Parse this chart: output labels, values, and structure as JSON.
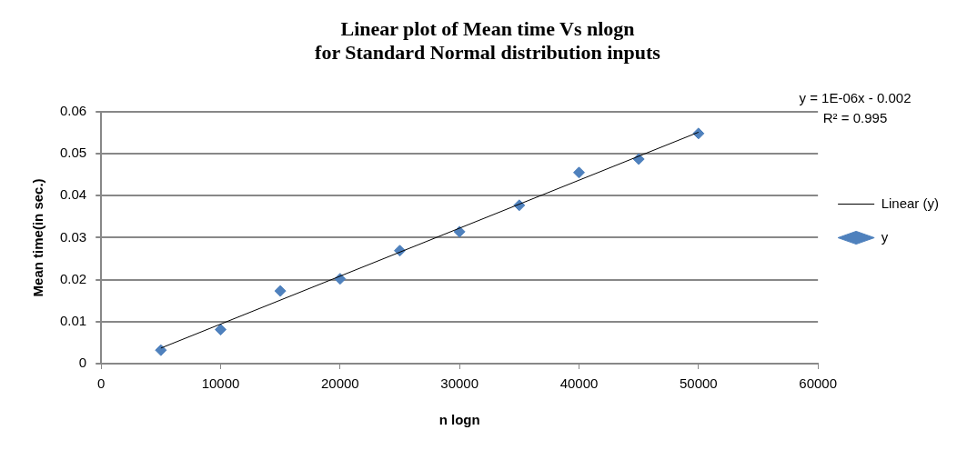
{
  "chart_data": {
    "type": "scatter",
    "title": "Linear plot of Mean time Vs nlogn\nfor Standard Normal distribution inputs",
    "xlabel": "n logn",
    "ylabel": "Mean time(in sec.)",
    "x": [
      5000,
      10000,
      15000,
      20000,
      25000,
      30000,
      35000,
      40000,
      45000,
      50000
    ],
    "series": [
      {
        "name": "y",
        "color": "#4f81bd",
        "marker": "diamond",
        "values": [
          0.0032,
          0.0081,
          0.0173,
          0.0202,
          0.0269,
          0.0314,
          0.0377,
          0.0455,
          0.0487,
          0.0548
        ]
      },
      {
        "name": "Linear (y)",
        "type": "line",
        "color": "#000000",
        "marker": "none",
        "line_style": "solid",
        "x": [
          5000,
          50000
        ],
        "values": [
          0.0037,
          0.0551
        ]
      }
    ],
    "xlim": [
      0,
      60000
    ],
    "xticks": [
      0,
      10000,
      20000,
      30000,
      40000,
      50000,
      60000
    ],
    "ylim": [
      0,
      0.06
    ],
    "yticks": [
      0,
      0.01,
      0.02,
      0.03,
      0.04,
      0.05,
      0.06
    ],
    "grid": "y",
    "legend": "right",
    "annotations": [
      "y = 1E-06x - 0.002",
      "R² = 0.995"
    ]
  }
}
